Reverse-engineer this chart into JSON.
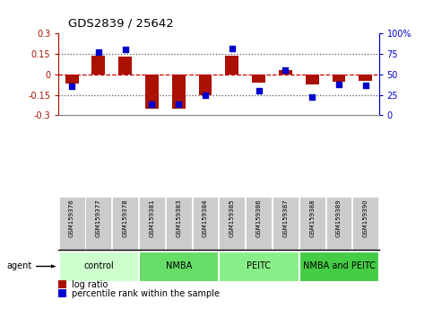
{
  "title": "GDS2839 / 25642",
  "samples": [
    "GSM159376",
    "GSM159377",
    "GSM159378",
    "GSM159381",
    "GSM159383",
    "GSM159384",
    "GSM159385",
    "GSM159386",
    "GSM159387",
    "GSM159388",
    "GSM159389",
    "GSM159390"
  ],
  "log_ratio": [
    -0.065,
    0.135,
    0.13,
    -0.255,
    -0.255,
    -0.15,
    0.138,
    -0.06,
    0.03,
    -0.072,
    -0.055,
    -0.045
  ],
  "percentile_rank": [
    35,
    77,
    80,
    13,
    13,
    25,
    82,
    30,
    55,
    22,
    38,
    37
  ],
  "groups": [
    {
      "label": "control",
      "start": 0,
      "end": 3,
      "color": "#ccffcc"
    },
    {
      "label": "NMBA",
      "start": 3,
      "end": 6,
      "color": "#66dd66"
    },
    {
      "label": "PEITC",
      "start": 6,
      "end": 9,
      "color": "#88ee88"
    },
    {
      "label": "NMBA and PEITC",
      "start": 9,
      "end": 12,
      "color": "#44cc44"
    }
  ],
  "ylim": [
    -0.3,
    0.3
  ],
  "yticks_left": [
    -0.3,
    -0.15,
    0,
    0.15,
    0.3
  ],
  "yticks_right": [
    0,
    25,
    50,
    75,
    100
  ],
  "bar_color": "#aa1100",
  "dot_color": "#0000cc",
  "hline_color": "#cc0000",
  "dotted_color": "#555555",
  "background_plot": "#ffffff",
  "background_label": "#cccccc",
  "group_colors": [
    "#ccffcc",
    "#66dd66",
    "#88ee88",
    "#44cc44"
  ]
}
